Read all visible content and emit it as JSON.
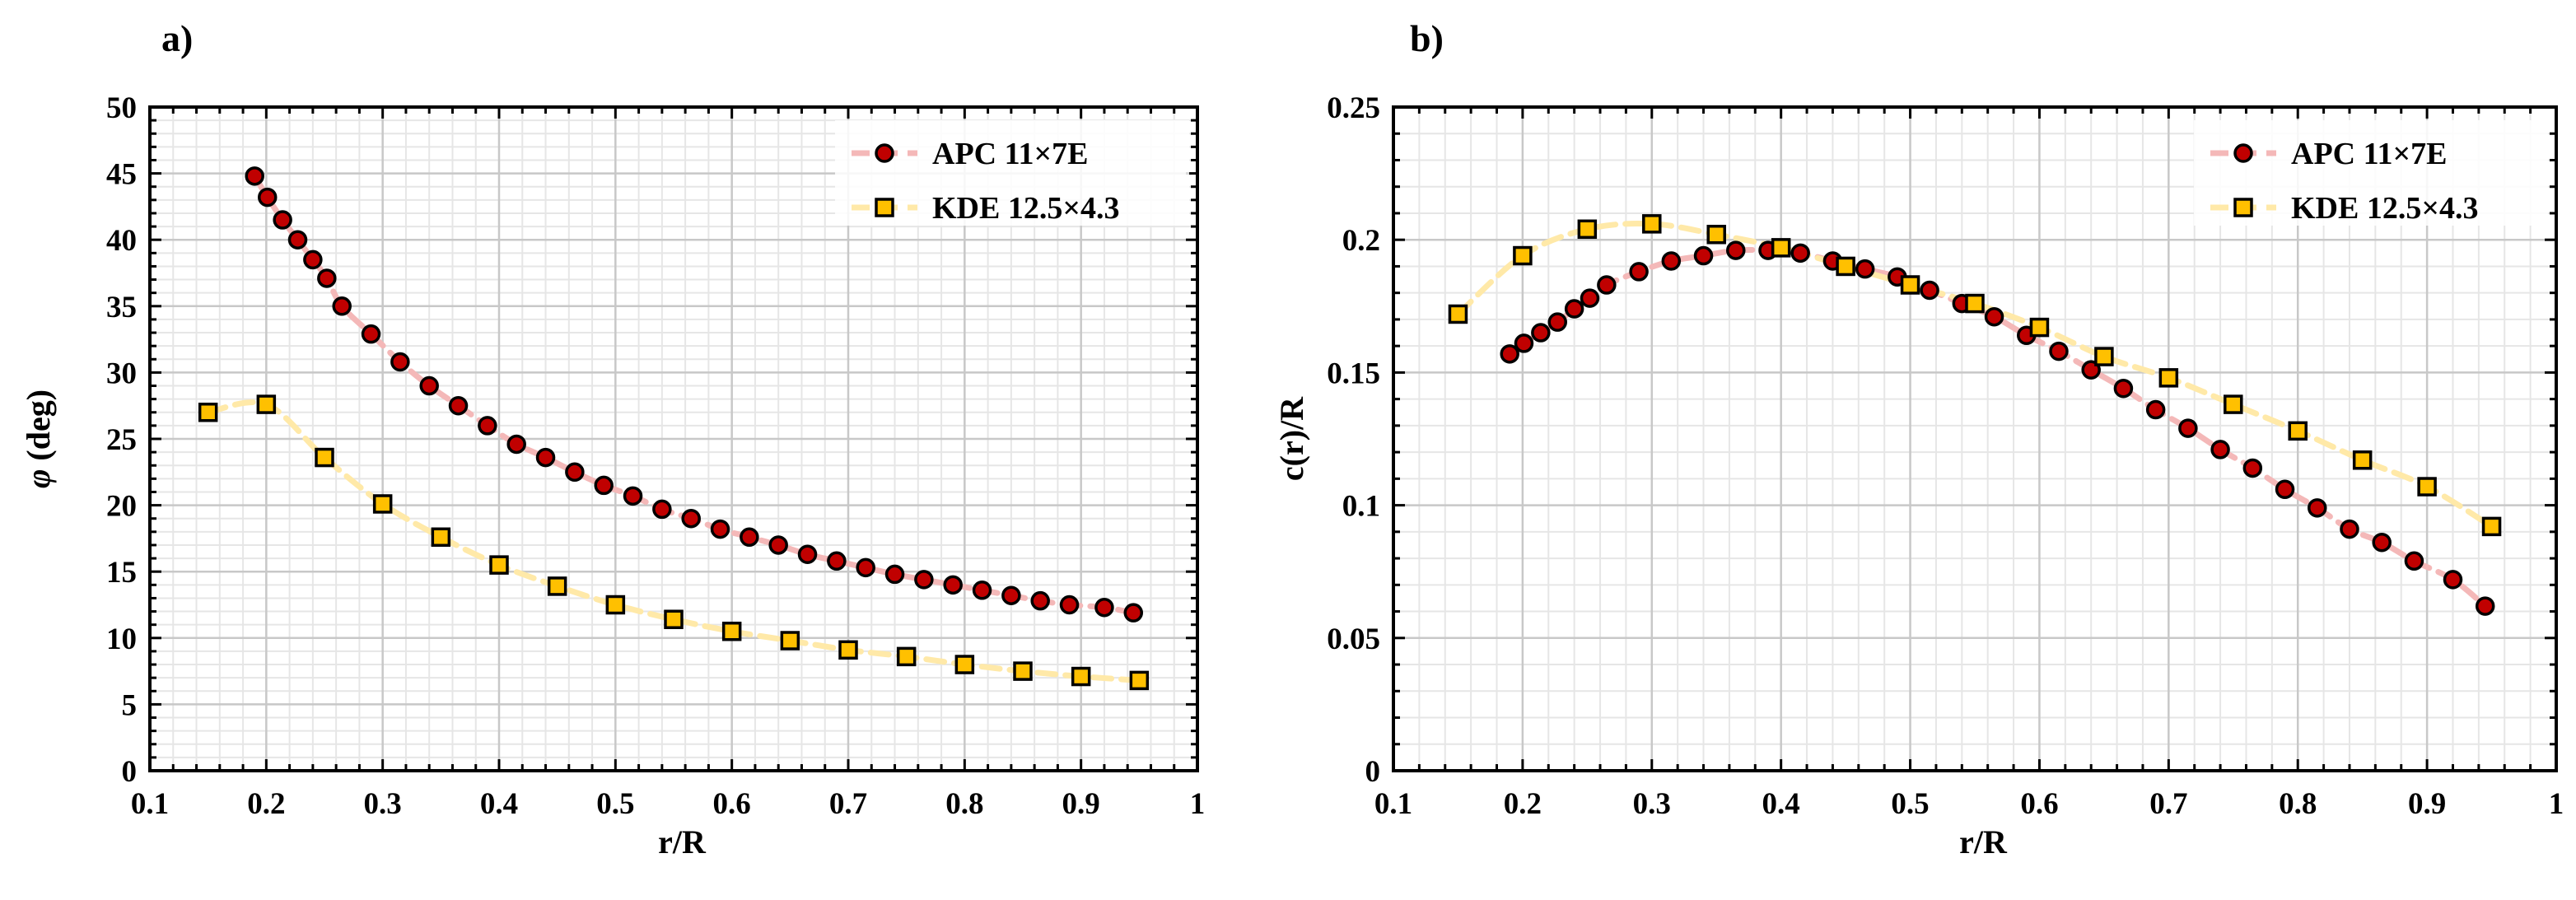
{
  "colors": {
    "apc_marker": "#c00000",
    "apc_line": "#f4b8b8",
    "kde_marker": "#ffc000",
    "kde_line": "#ffe9a8",
    "grid_minor": "#e6e6e6",
    "grid_major": "#c8c8c8"
  },
  "chart_data": [
    {
      "type": "scatter",
      "panel_label": "a)",
      "title": "",
      "xlabel": "r/R",
      "ylabel": "φ (deg)",
      "ylabel_symbol": "φ",
      "ylabel_unit": " (deg)",
      "xlim": [
        0.1,
        1.0
      ],
      "ylim": [
        0,
        50
      ],
      "xticks": [
        0.1,
        0.2,
        0.3,
        0.4,
        0.5,
        0.6,
        0.7,
        0.8,
        0.9,
        1.0
      ],
      "xtick_labels": [
        "0.1",
        "0.2",
        "0.3",
        "0.4",
        "0.5",
        "0.6",
        "0.7",
        "0.8",
        "0.9",
        "1"
      ],
      "yticks": [
        0,
        5,
        10,
        15,
        20,
        25,
        30,
        35,
        40,
        45,
        50
      ],
      "ytick_labels": [
        "0",
        "5",
        "10",
        "15",
        "20",
        "25",
        "30",
        "35",
        "40",
        "45",
        "50"
      ],
      "legend_position": "top-right",
      "series": [
        {
          "name": "APC 11×7E",
          "marker": "circle",
          "x": [
            0.19,
            0.201,
            0.214,
            0.227,
            0.24,
            0.252,
            0.265,
            0.29,
            0.315,
            0.34,
            0.365,
            0.39,
            0.415,
            0.44,
            0.465,
            0.49,
            0.515,
            0.54,
            0.565,
            0.59,
            0.615,
            0.64,
            0.665,
            0.69,
            0.715,
            0.74,
            0.765,
            0.79,
            0.815,
            0.84,
            0.865,
            0.89,
            0.92,
            0.945
          ],
          "y": [
            44.8,
            43.2,
            41.5,
            40.0,
            38.5,
            37.1,
            35.0,
            32.9,
            30.8,
            29.0,
            27.5,
            26.0,
            24.6,
            23.6,
            22.5,
            21.5,
            20.7,
            19.7,
            19.0,
            18.2,
            17.6,
            17.0,
            16.3,
            15.8,
            15.3,
            14.8,
            14.4,
            14.0,
            13.6,
            13.2,
            12.8,
            12.5,
            12.3,
            11.9
          ]
        },
        {
          "name": "KDE 12.5×4.3",
          "marker": "square",
          "x": [
            0.15,
            0.2,
            0.25,
            0.3,
            0.35,
            0.4,
            0.45,
            0.5,
            0.55,
            0.6,
            0.65,
            0.7,
            0.75,
            0.8,
            0.85,
            0.9,
            0.95
          ],
          "y": [
            27.0,
            27.6,
            23.6,
            20.1,
            17.6,
            15.5,
            13.9,
            12.5,
            11.4,
            10.5,
            9.8,
            9.1,
            8.6,
            8.0,
            7.5,
            7.1,
            6.8
          ]
        }
      ]
    },
    {
      "type": "scatter",
      "panel_label": "b)",
      "title": "",
      "xlabel": "r/R",
      "ylabel": "c(r)/R",
      "xlim": [
        0.1,
        1.0
      ],
      "ylim": [
        0,
        0.25
      ],
      "xticks": [
        0.1,
        0.2,
        0.3,
        0.4,
        0.5,
        0.6,
        0.7,
        0.8,
        0.9,
        1.0
      ],
      "xtick_labels": [
        "0.1",
        "0.2",
        "0.3",
        "0.4",
        "0.5",
        "0.6",
        "0.7",
        "0.8",
        "0.9",
        "1"
      ],
      "yticks": [
        0,
        0.05,
        0.1,
        0.15,
        0.2,
        0.25
      ],
      "ytick_labels": [
        "0",
        "0.05",
        "0.1",
        "0.15",
        "0.2",
        "0.25"
      ],
      "legend_position": "top-right",
      "series": [
        {
          "name": "APC 11×7E",
          "marker": "circle",
          "x": [
            0.19,
            0.201,
            0.214,
            0.227,
            0.24,
            0.252,
            0.265,
            0.29,
            0.315,
            0.34,
            0.365,
            0.39,
            0.415,
            0.44,
            0.465,
            0.49,
            0.515,
            0.54,
            0.565,
            0.59,
            0.615,
            0.64,
            0.665,
            0.69,
            0.715,
            0.74,
            0.765,
            0.79,
            0.815,
            0.84,
            0.865,
            0.89,
            0.92,
            0.945
          ],
          "y": [
            0.157,
            0.161,
            0.165,
            0.169,
            0.174,
            0.178,
            0.183,
            0.188,
            0.192,
            0.194,
            0.196,
            0.196,
            0.195,
            0.192,
            0.189,
            0.186,
            0.181,
            0.176,
            0.171,
            0.164,
            0.158,
            0.151,
            0.144,
            0.136,
            0.129,
            0.121,
            0.114,
            0.106,
            0.099,
            0.091,
            0.086,
            0.079,
            0.072,
            0.062
          ]
        },
        {
          "name": "KDE 12.5×4.3",
          "marker": "square",
          "x": [
            0.15,
            0.2,
            0.25,
            0.3,
            0.35,
            0.4,
            0.45,
            0.5,
            0.55,
            0.6,
            0.65,
            0.7,
            0.75,
            0.8,
            0.85,
            0.9,
            0.95
          ],
          "y": [
            0.172,
            0.194,
            0.204,
            0.206,
            0.202,
            0.197,
            0.19,
            0.183,
            0.176,
            0.167,
            0.156,
            0.148,
            0.138,
            0.128,
            0.117,
            0.107,
            0.092
          ]
        }
      ]
    }
  ]
}
